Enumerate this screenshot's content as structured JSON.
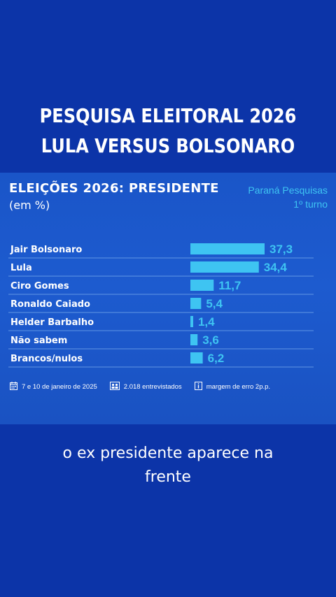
{
  "headline": {
    "line1": "PESQUISA ELEITORAL 2026",
    "line2": "LULA VERSUS BOLSONARO"
  },
  "chart_data": {
    "type": "bar",
    "orientation": "horizontal",
    "title": "ELEIÇÕES 2026: PRESIDENTE",
    "subtitle": "(em %)",
    "source_line1": "Paraná Pesquisas",
    "source_line2": "1º turno",
    "categories": [
      "Jair Bolsonaro",
      "Lula",
      "Ciro Gomes",
      "Ronaldo Caiado",
      "Helder Barbalho",
      "Não sabem",
      "Brancos/nulos"
    ],
    "values": [
      37.3,
      34.4,
      11.7,
      5.4,
      1.4,
      3.6,
      6.2
    ],
    "value_labels": [
      "37,3",
      "34,4",
      "11,7",
      "5,4",
      "1,4",
      "3,6",
      "6,2"
    ],
    "xlim": [
      0,
      37.3
    ],
    "bar_color": "#3ec4f2",
    "grid": false
  },
  "footer": {
    "date": "7 e 10 de janeiro de 2025",
    "interviews": "2.018 entrevistados",
    "margin": "margem de erro 2p.p.",
    "icons": [
      "calendar-icon",
      "people-icon",
      "info-icon"
    ]
  },
  "caption": {
    "line1": "o ex presidente aparece na",
    "line2": "frente"
  }
}
